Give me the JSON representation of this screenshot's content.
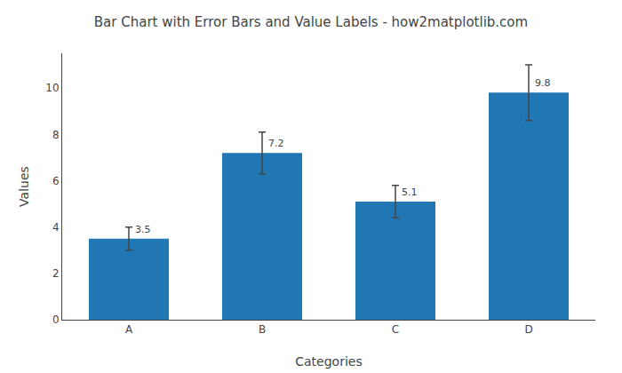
{
  "chart_data": {
    "type": "bar",
    "title": "Bar Chart with Error Bars and Value Labels - how2matplotlib.com",
    "xlabel": "Categories",
    "ylabel": "Values",
    "categories": [
      "A",
      "B",
      "C",
      "D"
    ],
    "values": [
      3.5,
      7.2,
      5.1,
      9.8
    ],
    "errors": [
      0.5,
      0.9,
      0.7,
      1.2
    ],
    "color": "#2077b4",
    "ylim": [
      0,
      11.5
    ],
    "yticks": [
      0,
      2,
      4,
      6,
      8,
      10
    ],
    "grid": false,
    "data_labels": true
  }
}
